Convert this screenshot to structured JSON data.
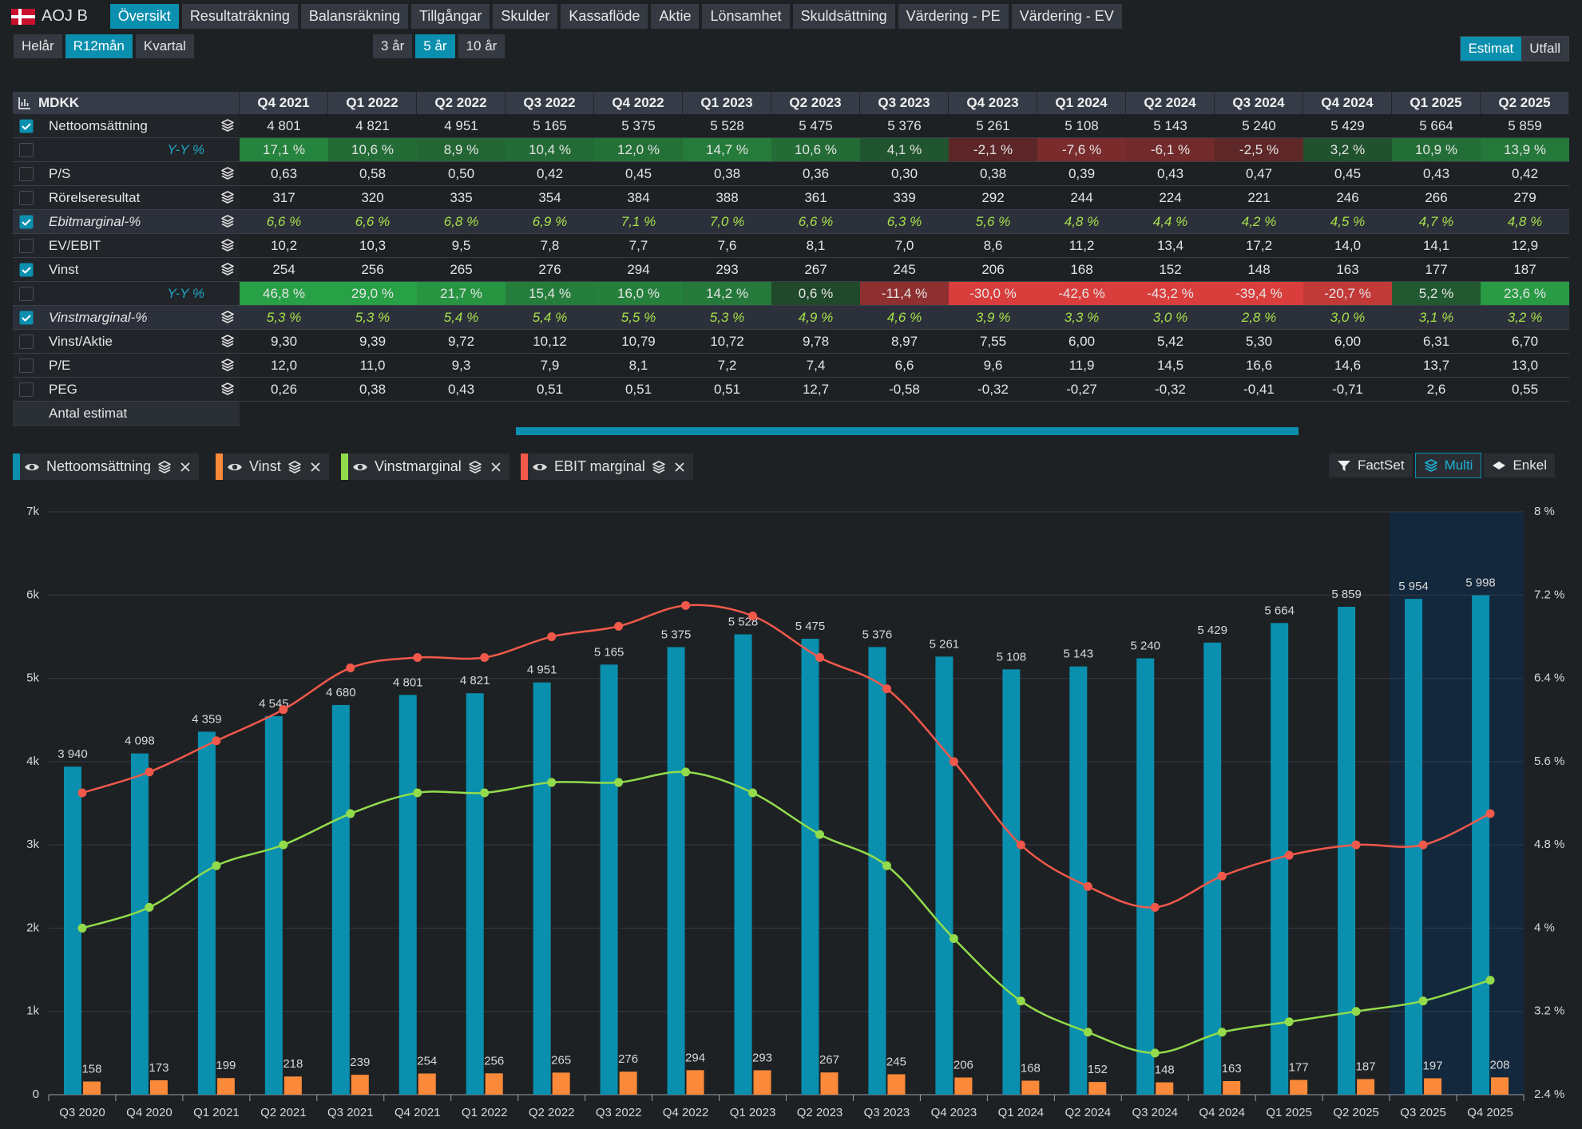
{
  "header": {
    "ticker": "AOJ B",
    "tabs": [
      "Översikt",
      "Resultaträkning",
      "Balansräkning",
      "Tillgångar",
      "Skulder",
      "Kassaflöde",
      "Aktie",
      "Lönsamhet",
      "Skuldsättning",
      "Värdering - PE",
      "Värdering - EV"
    ],
    "active_tab": 0
  },
  "toolbar": {
    "periods": [
      "Helår",
      "R12mån",
      "Kvartal"
    ],
    "active_period": 1,
    "ranges": [
      "3 år",
      "5 år",
      "10 år"
    ],
    "active_range": 1,
    "modes": [
      "Estimat",
      "Utfall"
    ],
    "active_mode": 0
  },
  "table": {
    "title": "MDKK",
    "columns": [
      "Q4 2021",
      "Q1 2022",
      "Q2 2022",
      "Q3 2022",
      "Q4 2022",
      "Q1 2023",
      "Q2 2023",
      "Q3 2023",
      "Q4 2023",
      "Q1 2024",
      "Q2 2024",
      "Q3 2024",
      "Q4 2024",
      "Q1 2025",
      "Q2 2025"
    ],
    "rows": [
      {
        "label": "Nettoomsättning",
        "checked": true,
        "italic": false,
        "sub": false,
        "values": [
          "4 801",
          "4 821",
          "4 951",
          "5 165",
          "5 375",
          "5 528",
          "5 475",
          "5 376",
          "5 261",
          "5 108",
          "5 143",
          "5 240",
          "5 429",
          "5 664",
          "5 859"
        ]
      },
      {
        "label": "Y-Y %",
        "checked": false,
        "italic": true,
        "sub": true,
        "values": [
          "17,1 %",
          "10,6 %",
          "8,9 %",
          "10,4 %",
          "12,0 %",
          "14,7 %",
          "10,6 %",
          "4,1 %",
          "-2,1 %",
          "-7,6 %",
          "-6,1 %",
          "-2,5 %",
          "3,2 %",
          "10,9 %",
          "13,9 %"
        ]
      },
      {
        "label": "P/S",
        "checked": false,
        "italic": false,
        "sub": false,
        "values": [
          "0,63",
          "0,58",
          "0,50",
          "0,42",
          "0,45",
          "0,38",
          "0,36",
          "0,30",
          "0,38",
          "0,39",
          "0,43",
          "0,47",
          "0,45",
          "0,43",
          "0,42"
        ]
      },
      {
        "label": "Rörelseresultat",
        "checked": false,
        "italic": false,
        "sub": false,
        "values": [
          "317",
          "320",
          "335",
          "354",
          "384",
          "388",
          "361",
          "339",
          "292",
          "244",
          "224",
          "221",
          "246",
          "266",
          "279"
        ]
      },
      {
        "label": "Ebitmarginal-%",
        "checked": true,
        "italic": true,
        "sub": false,
        "values": [
          "6,6 %",
          "6,6 %",
          "6,8 %",
          "6,9 %",
          "7,1 %",
          "7,0 %",
          "6,6 %",
          "6,3 %",
          "5,6 %",
          "4,8 %",
          "4,4 %",
          "4,2 %",
          "4,5 %",
          "4,7 %",
          "4,8 %"
        ]
      },
      {
        "label": "EV/EBIT",
        "checked": false,
        "italic": false,
        "sub": false,
        "values": [
          "10,2",
          "10,3",
          "9,5",
          "7,8",
          "7,7",
          "7,6",
          "8,1",
          "7,0",
          "8,6",
          "11,2",
          "13,4",
          "17,2",
          "14,0",
          "14,1",
          "12,9"
        ]
      },
      {
        "label": "Vinst",
        "checked": true,
        "italic": false,
        "sub": false,
        "values": [
          "254",
          "256",
          "265",
          "276",
          "294",
          "293",
          "267",
          "245",
          "206",
          "168",
          "152",
          "148",
          "163",
          "177",
          "187"
        ]
      },
      {
        "label": "Y-Y %",
        "checked": false,
        "italic": true,
        "sub": true,
        "values": [
          "46,8 %",
          "29,0 %",
          "21,7 %",
          "15,4 %",
          "16,0 %",
          "14,2 %",
          "0,6 %",
          "-11,4 %",
          "-30,0 %",
          "-42,6 %",
          "-43,2 %",
          "-39,4 %",
          "-20,7 %",
          "5,2 %",
          "23,6 %"
        ]
      },
      {
        "label": "Vinstmarginal-%",
        "checked": true,
        "italic": true,
        "sub": false,
        "values": [
          "5,3 %",
          "5,3 %",
          "5,4 %",
          "5,4 %",
          "5,5 %",
          "5,3 %",
          "4,9 %",
          "4,6 %",
          "3,9 %",
          "3,3 %",
          "3,0 %",
          "2,8 %",
          "3,0 %",
          "3,1 %",
          "3,2 %"
        ]
      },
      {
        "label": "Vinst/Aktie",
        "checked": false,
        "italic": false,
        "sub": false,
        "values": [
          "9,30",
          "9,39",
          "9,72",
          "10,12",
          "10,79",
          "10,72",
          "9,78",
          "8,97",
          "7,55",
          "6,00",
          "5,42",
          "5,30",
          "6,00",
          "6,31",
          "6,70"
        ]
      },
      {
        "label": "P/E",
        "checked": false,
        "italic": false,
        "sub": false,
        "values": [
          "12,0",
          "11,0",
          "9,3",
          "7,9",
          "8,1",
          "7,2",
          "7,4",
          "6,6",
          "9,6",
          "11,9",
          "14,5",
          "16,6",
          "14,6",
          "13,7",
          "13,0"
        ]
      },
      {
        "label": "PEG",
        "checked": false,
        "italic": false,
        "sub": false,
        "values": [
          "0,26",
          "0,38",
          "0,43",
          "0,51",
          "0,51",
          "0,51",
          "12,7",
          "-0,58",
          "-0,32",
          "-0,27",
          "-0,32",
          "-0,41",
          "-0,71",
          "2,6",
          "0,55"
        ]
      },
      {
        "label": "Antal estimat",
        "values": []
      }
    ]
  },
  "chart_buttons": [
    "FactSet",
    "Multi",
    "Enkel"
  ],
  "active_chart_button": 1,
  "chart_data": {
    "type": "combo",
    "categories": [
      "Q3 2020",
      "Q4 2020",
      "Q1 2021",
      "Q2 2021",
      "Q3 2021",
      "Q4 2021",
      "Q1 2022",
      "Q2 2022",
      "Q3 2022",
      "Q4 2022",
      "Q1 2023",
      "Q2 2023",
      "Q3 2023",
      "Q4 2023",
      "Q1 2024",
      "Q2 2024",
      "Q3 2024",
      "Q4 2024",
      "Q1 2025",
      "Q2 2025",
      "Q3 2025",
      "Q4 2025"
    ],
    "series": [
      {
        "name": "Nettoomsättning",
        "type": "bar",
        "color": "#0a8fae",
        "values": [
          3940,
          4098,
          4359,
          4545,
          4680,
          4801,
          4821,
          4951,
          5165,
          5375,
          5528,
          5475,
          5376,
          5261,
          5108,
          5143,
          5240,
          5429,
          5664,
          5859,
          5954,
          5998
        ],
        "value_labels": [
          "3 940",
          "4 098",
          "4 359",
          "4 545",
          "4 680",
          "4 801",
          "4 821",
          "4 951",
          "5 165",
          "5 375",
          "5 528",
          "5 475",
          "5 376",
          "5 261",
          "5 108",
          "5 143",
          "5 240",
          "5 429",
          "5 664",
          "5 859",
          "5 954",
          "5 998"
        ]
      },
      {
        "name": "Vinst",
        "type": "bar",
        "color": "#fa8a3a",
        "values": [
          158,
          173,
          199,
          218,
          239,
          254,
          256,
          265,
          276,
          294,
          293,
          267,
          245,
          206,
          168,
          152,
          148,
          163,
          177,
          187,
          197,
          208
        ]
      },
      {
        "name": "Vinstmarginal",
        "type": "line",
        "axis": "y2",
        "color": "#92dc4c",
        "values": [
          4.0,
          4.2,
          4.6,
          4.8,
          5.1,
          5.3,
          5.3,
          5.4,
          5.4,
          5.5,
          5.3,
          4.9,
          4.6,
          3.9,
          3.3,
          3.0,
          2.8,
          3.0,
          3.1,
          3.2,
          3.3,
          3.5
        ]
      },
      {
        "name": "EBIT marginal",
        "type": "line",
        "axis": "y2",
        "color": "#f2594b",
        "values": [
          5.3,
          5.5,
          5.8,
          6.1,
          6.5,
          6.6,
          6.6,
          6.8,
          6.9,
          7.1,
          7.0,
          6.6,
          6.3,
          5.6,
          4.8,
          4.4,
          4.2,
          4.5,
          4.7,
          4.8,
          4.8,
          5.1
        ]
      }
    ],
    "ylim": [
      0,
      7000
    ],
    "yticks": [
      0,
      {
        "value": 1000,
        "label": "1k"
      },
      {
        "value": 2000,
        "label": "2k"
      },
      {
        "value": 3000,
        "label": "3k"
      },
      {
        "value": 4000,
        "label": "4k"
      },
      {
        "value": 5000,
        "label": "5k"
      },
      {
        "value": 6000,
        "label": "6k"
      },
      {
        "value": 7000,
        "label": "7k"
      }
    ],
    "y2lim": [
      2.4,
      8
    ],
    "y2ticks": [
      {
        "value": 2.4,
        "label": "2.4 %"
      },
      {
        "value": 3.2,
        "label": "3.2 %"
      },
      {
        "value": 4,
        "label": "4 %"
      },
      {
        "value": 4.8,
        "label": "4.8 %"
      },
      {
        "value": 5.6,
        "label": "5.6 %"
      },
      {
        "value": 6.4,
        "label": "6.4 %"
      },
      {
        "value": 7.2,
        "label": "7.2 %"
      },
      {
        "value": 8,
        "label": "8 %"
      }
    ],
    "grid": true,
    "shade_last": 2
  }
}
